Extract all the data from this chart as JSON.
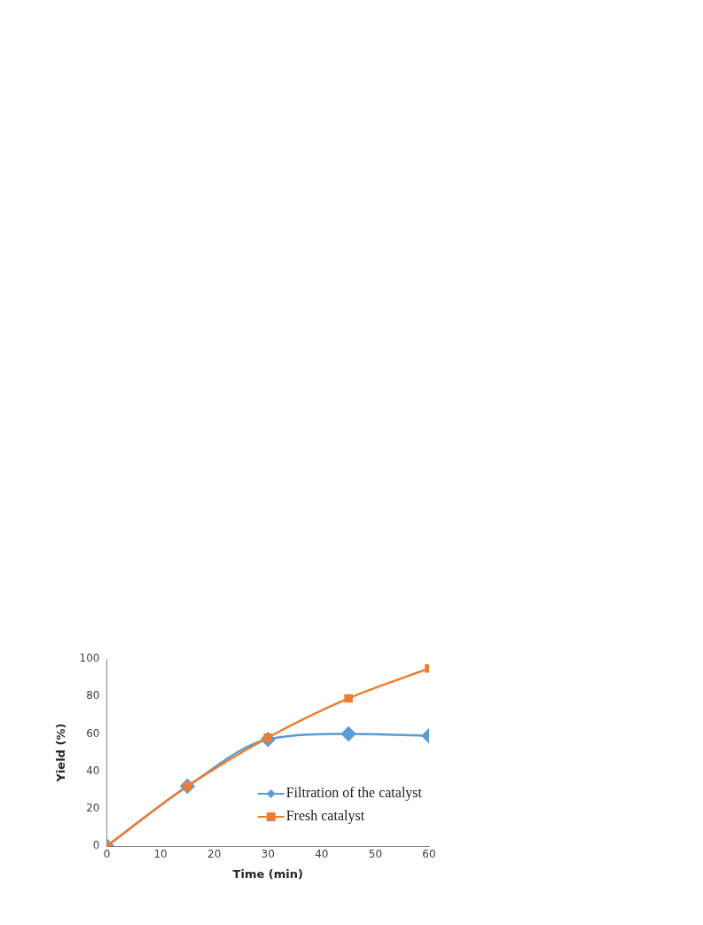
{
  "chart_data": {
    "type": "line",
    "xlabel": "Time (min)",
    "ylabel": "Yield (%)",
    "x": [
      0,
      15,
      30,
      45,
      60
    ],
    "series": [
      {
        "name": "Filtration of the catalyst",
        "color": "#5b9bd5",
        "marker": "diamond",
        "values": [
          0,
          32,
          57,
          60,
          59
        ]
      },
      {
        "name": "Fresh catalyst",
        "color": "#ed7d31",
        "marker": "square",
        "values": [
          0,
          32,
          58,
          79,
          95
        ]
      }
    ],
    "xlim": [
      0,
      60
    ],
    "xticks": [
      0,
      10,
      20,
      30,
      40,
      50,
      60
    ],
    "ylim": [
      0,
      100
    ],
    "yticks": [
      0,
      20,
      40,
      60,
      80,
      100
    ],
    "grid": false,
    "legend": "bottom right"
  }
}
